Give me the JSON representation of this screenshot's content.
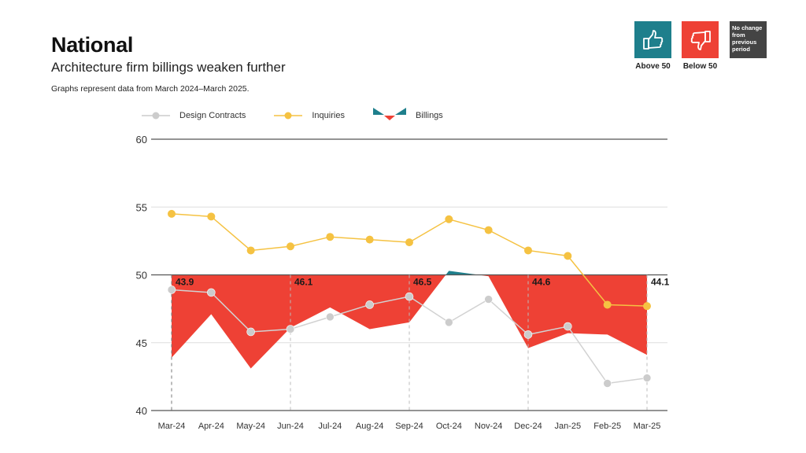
{
  "header": {
    "title": "National",
    "subtitle": "Architecture firm billings weaken further",
    "note": "Graphs represent data from March 2024–March 2025."
  },
  "key": {
    "above": {
      "label": "Above 50",
      "icon": "thumbs-up-icon",
      "color": "#1e7f8c"
    },
    "below": {
      "label": "Below 50",
      "icon": "thumbs-down-icon",
      "color": "#ee4135"
    },
    "nochange": {
      "text": "No change from previous period",
      "color": "#444444"
    }
  },
  "chart_data": {
    "type": "line",
    "title": "National",
    "categories": [
      "Mar-24",
      "Apr-24",
      "May-24",
      "Jun-24",
      "Jul-24",
      "Aug-24",
      "Sep-24",
      "Oct-24",
      "Nov-24",
      "Dec-24",
      "Jan-25",
      "Feb-25",
      "Mar-25"
    ],
    "ylim": [
      40,
      60
    ],
    "yticks": [
      40,
      45,
      50,
      55,
      60
    ],
    "baseline": 50,
    "legend_position": "top",
    "series": [
      {
        "name": "Design Contracts",
        "type": "line",
        "color": "#cccccc",
        "values": [
          48.9,
          48.7,
          45.8,
          46.0,
          46.9,
          47.8,
          48.4,
          46.5,
          48.2,
          45.6,
          46.2,
          42.0,
          42.4
        ]
      },
      {
        "name": "Inquiries",
        "type": "line",
        "color": "#f5c242",
        "values": [
          54.5,
          54.3,
          51.8,
          52.1,
          52.8,
          52.6,
          52.4,
          54.1,
          53.3,
          51.8,
          51.4,
          47.8,
          47.7
        ]
      },
      {
        "name": "Billings",
        "type": "area",
        "color_above": "#1e7f8c",
        "color_below": "#ee4135",
        "values": [
          43.9,
          47.1,
          43.1,
          46.1,
          47.6,
          46.0,
          46.5,
          50.3,
          49.9,
          44.6,
          45.7,
          45.6,
          44.1
        ]
      }
    ],
    "annotations": [
      {
        "index": 0,
        "text": "43.9"
      },
      {
        "index": 3,
        "text": "46.1"
      },
      {
        "index": 6,
        "text": "46.5"
      },
      {
        "index": 9,
        "text": "44.6"
      },
      {
        "index": 12,
        "text": "44.1"
      }
    ]
  }
}
